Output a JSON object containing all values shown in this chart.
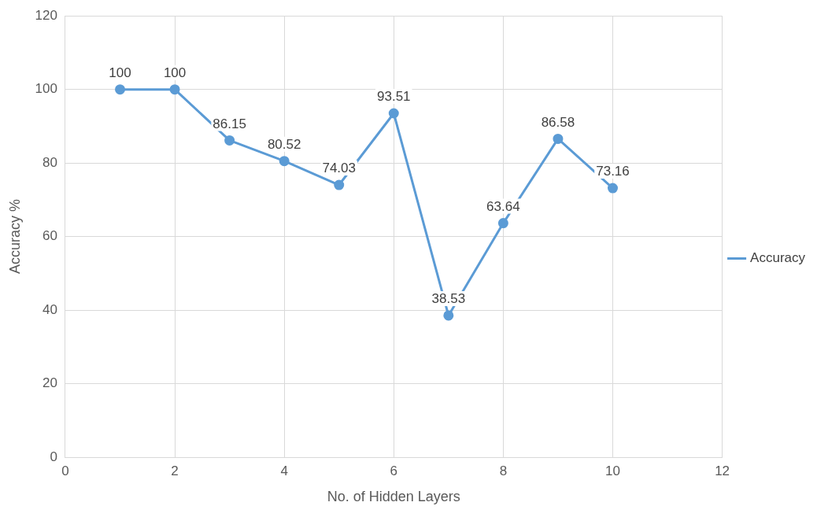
{
  "chart_data": {
    "type": "line",
    "xlabel": "No. of Hidden Layers",
    "ylabel": "Accuracy %",
    "x": [
      1,
      2,
      3,
      4,
      5,
      6,
      7,
      8,
      9,
      10
    ],
    "series": [
      {
        "name": "Accuracy",
        "color": "#5b9bd5",
        "values": [
          100,
          100,
          86.15,
          80.52,
          74.03,
          93.51,
          38.53,
          63.64,
          86.58,
          73.16
        ]
      }
    ],
    "xlim": [
      0,
      12
    ],
    "xticks": [
      0,
      2,
      4,
      6,
      8,
      10,
      12
    ],
    "ylim": [
      0,
      120
    ],
    "yticks": [
      0,
      20,
      40,
      60,
      80,
      100,
      120
    ],
    "grid": true,
    "legend": "right",
    "marker": "circle",
    "line_style": "solid",
    "data_labels": true
  }
}
